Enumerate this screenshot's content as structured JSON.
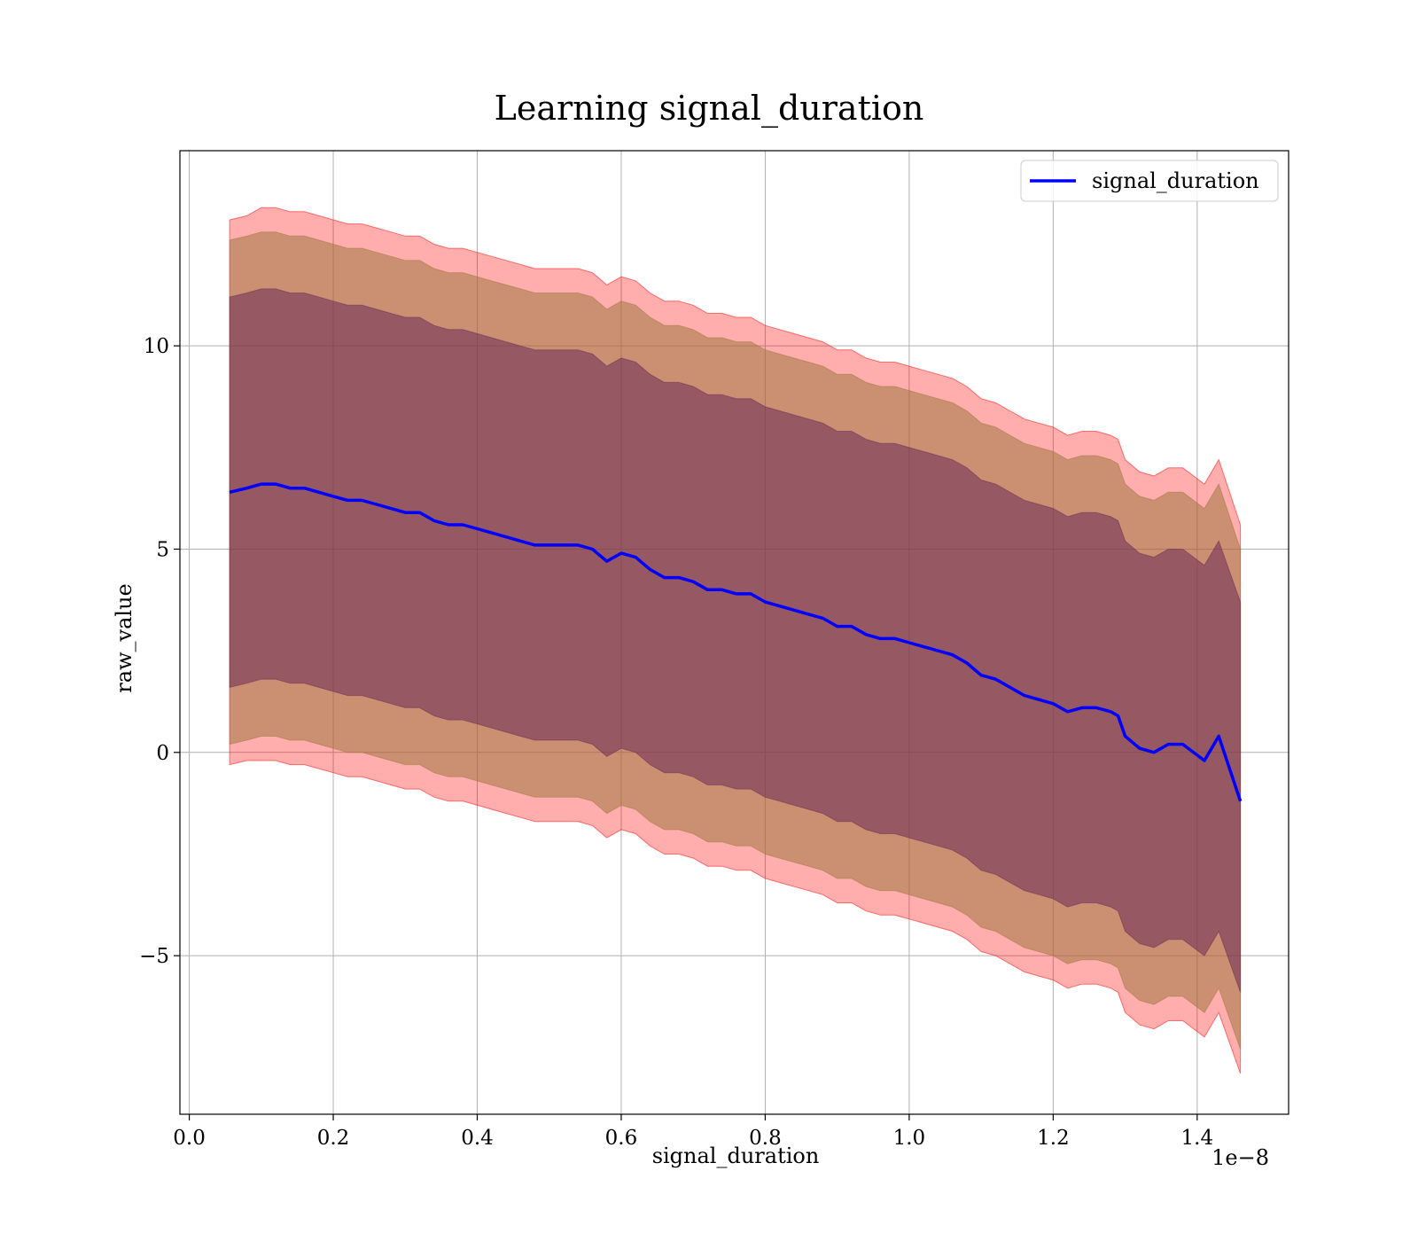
{
  "chart_data": {
    "type": "line",
    "title": "Learning signal_duration",
    "xlabel": "signal_duration",
    "ylabel": "raw_value",
    "x_offset_label": "1e−8",
    "xlim": [
      -0.013,
      1.527
    ],
    "ylim": [
      -8.9,
      14.8
    ],
    "x_ticks": [
      0.0,
      0.2,
      0.4,
      0.6,
      0.8,
      1.0,
      1.2,
      1.4
    ],
    "x_tick_labels": [
      "0.0",
      "0.2",
      "0.4",
      "0.6",
      "0.8",
      "1.0",
      "1.2",
      "1.4"
    ],
    "y_ticks": [
      -5,
      0,
      5,
      10
    ],
    "y_tick_labels": [
      "−5",
      "0",
      "5",
      "10"
    ],
    "grid": true,
    "legend": {
      "position": "top-right",
      "entries": [
        "signal_duration"
      ]
    },
    "colors": {
      "line": "#0000ff",
      "outer_band": "#ff0000",
      "middle_band": "#a07840",
      "inner_band": "#6b2a55",
      "grid": "#b0b0b0"
    },
    "series": [
      {
        "name": "signal_duration",
        "x": [
          0.056,
          0.08,
          0.1,
          0.12,
          0.14,
          0.16,
          0.18,
          0.2,
          0.22,
          0.24,
          0.26,
          0.28,
          0.3,
          0.32,
          0.34,
          0.36,
          0.38,
          0.4,
          0.42,
          0.44,
          0.46,
          0.48,
          0.5,
          0.52,
          0.54,
          0.56,
          0.58,
          0.6,
          0.62,
          0.64,
          0.66,
          0.68,
          0.7,
          0.72,
          0.74,
          0.76,
          0.78,
          0.8,
          0.82,
          0.84,
          0.86,
          0.88,
          0.9,
          0.92,
          0.94,
          0.96,
          0.98,
          1.0,
          1.02,
          1.04,
          1.06,
          1.08,
          1.1,
          1.12,
          1.14,
          1.16,
          1.18,
          1.2,
          1.22,
          1.24,
          1.26,
          1.28,
          1.29,
          1.3,
          1.32,
          1.34,
          1.36,
          1.38,
          1.41,
          1.43,
          1.46
        ],
        "y": [
          6.4,
          6.5,
          6.6,
          6.6,
          6.5,
          6.5,
          6.4,
          6.3,
          6.2,
          6.2,
          6.1,
          6.0,
          5.9,
          5.9,
          5.7,
          5.6,
          5.6,
          5.5,
          5.4,
          5.3,
          5.2,
          5.1,
          5.1,
          5.1,
          5.1,
          5.0,
          4.7,
          4.9,
          4.8,
          4.5,
          4.3,
          4.3,
          4.2,
          4.0,
          4.0,
          3.9,
          3.9,
          3.7,
          3.6,
          3.5,
          3.4,
          3.3,
          3.1,
          3.1,
          2.9,
          2.8,
          2.8,
          2.7,
          2.6,
          2.5,
          2.4,
          2.2,
          1.9,
          1.8,
          1.6,
          1.4,
          1.3,
          1.2,
          1.0,
          1.1,
          1.1,
          1.0,
          0.9,
          0.4,
          0.1,
          0.0,
          0.2,
          0.2,
          -0.2,
          0.4,
          -1.2
        ]
      }
    ],
    "bands": [
      {
        "role": "outer",
        "lower": [
          -0.3,
          -0.2,
          -0.2,
          -0.2,
          -0.3,
          -0.3,
          -0.4,
          -0.5,
          -0.6,
          -0.6,
          -0.7,
          -0.8,
          -0.9,
          -0.9,
          -1.1,
          -1.2,
          -1.2,
          -1.3,
          -1.4,
          -1.5,
          -1.6,
          -1.7,
          -1.7,
          -1.7,
          -1.7,
          -1.8,
          -2.1,
          -1.9,
          -2.0,
          -2.3,
          -2.5,
          -2.5,
          -2.6,
          -2.8,
          -2.8,
          -2.9,
          -2.9,
          -3.1,
          -3.2,
          -3.3,
          -3.4,
          -3.5,
          -3.7,
          -3.7,
          -3.9,
          -4.0,
          -4.0,
          -4.1,
          -4.2,
          -4.3,
          -4.4,
          -4.6,
          -4.9,
          -5.0,
          -5.2,
          -5.4,
          -5.5,
          -5.6,
          -5.8,
          -5.7,
          -5.7,
          -5.8,
          -5.9,
          -6.4,
          -6.7,
          -6.8,
          -6.6,
          -6.6,
          -7.0,
          -6.4,
          -7.9
        ],
        "upper": [
          13.1,
          13.2,
          13.4,
          13.4,
          13.3,
          13.3,
          13.2,
          13.1,
          13.0,
          13.0,
          12.9,
          12.8,
          12.7,
          12.7,
          12.5,
          12.4,
          12.4,
          12.3,
          12.2,
          12.1,
          12.0,
          11.9,
          11.9,
          11.9,
          11.9,
          11.8,
          11.5,
          11.7,
          11.6,
          11.3,
          11.1,
          11.1,
          11.0,
          10.8,
          10.8,
          10.7,
          10.7,
          10.5,
          10.4,
          10.3,
          10.2,
          10.1,
          9.9,
          9.9,
          9.7,
          9.6,
          9.6,
          9.5,
          9.4,
          9.3,
          9.2,
          9.0,
          8.7,
          8.6,
          8.4,
          8.2,
          8.1,
          8.0,
          7.8,
          7.9,
          7.9,
          7.8,
          7.7,
          7.2,
          6.9,
          6.8,
          7.0,
          7.0,
          6.6,
          7.2,
          5.6
        ]
      },
      {
        "role": "middle",
        "lower": [
          0.2,
          0.3,
          0.4,
          0.4,
          0.3,
          0.3,
          0.2,
          0.1,
          0.0,
          0.0,
          -0.1,
          -0.2,
          -0.3,
          -0.3,
          -0.5,
          -0.6,
          -0.6,
          -0.7,
          -0.8,
          -0.9,
          -1.0,
          -1.1,
          -1.1,
          -1.1,
          -1.1,
          -1.2,
          -1.5,
          -1.3,
          -1.4,
          -1.7,
          -1.9,
          -1.9,
          -2.0,
          -2.2,
          -2.2,
          -2.3,
          -2.3,
          -2.5,
          -2.6,
          -2.7,
          -2.8,
          -2.9,
          -3.1,
          -3.1,
          -3.3,
          -3.4,
          -3.4,
          -3.5,
          -3.6,
          -3.7,
          -3.8,
          -4.0,
          -4.3,
          -4.4,
          -4.6,
          -4.8,
          -4.9,
          -5.0,
          -5.2,
          -5.1,
          -5.1,
          -5.2,
          -5.3,
          -5.8,
          -6.1,
          -6.2,
          -6.0,
          -6.0,
          -6.4,
          -5.8,
          -7.3
        ],
        "upper": [
          12.6,
          12.7,
          12.8,
          12.8,
          12.7,
          12.7,
          12.6,
          12.5,
          12.4,
          12.4,
          12.3,
          12.2,
          12.1,
          12.1,
          11.9,
          11.8,
          11.8,
          11.7,
          11.6,
          11.5,
          11.4,
          11.3,
          11.3,
          11.3,
          11.3,
          11.2,
          10.9,
          11.1,
          11.0,
          10.7,
          10.5,
          10.5,
          10.4,
          10.2,
          10.2,
          10.1,
          10.1,
          9.9,
          9.8,
          9.7,
          9.6,
          9.5,
          9.3,
          9.3,
          9.1,
          9.0,
          9.0,
          8.9,
          8.8,
          8.7,
          8.6,
          8.4,
          8.1,
          8.0,
          7.8,
          7.6,
          7.5,
          7.4,
          7.2,
          7.3,
          7.3,
          7.2,
          7.1,
          6.6,
          6.3,
          6.2,
          6.4,
          6.4,
          6.0,
          6.6,
          5.0
        ]
      },
      {
        "role": "inner",
        "lower": [
          1.6,
          1.7,
          1.8,
          1.8,
          1.7,
          1.7,
          1.6,
          1.5,
          1.4,
          1.4,
          1.3,
          1.2,
          1.1,
          1.1,
          0.9,
          0.8,
          0.8,
          0.7,
          0.6,
          0.5,
          0.4,
          0.3,
          0.3,
          0.3,
          0.3,
          0.2,
          -0.1,
          0.1,
          0.0,
          -0.3,
          -0.5,
          -0.5,
          -0.6,
          -0.8,
          -0.8,
          -0.9,
          -0.9,
          -1.1,
          -1.2,
          -1.3,
          -1.4,
          -1.5,
          -1.7,
          -1.7,
          -1.9,
          -2.0,
          -2.0,
          -2.1,
          -2.2,
          -2.3,
          -2.4,
          -2.6,
          -2.9,
          -3.0,
          -3.2,
          -3.4,
          -3.5,
          -3.6,
          -3.8,
          -3.7,
          -3.7,
          -3.8,
          -3.9,
          -4.4,
          -4.7,
          -4.8,
          -4.6,
          -4.6,
          -5.0,
          -4.4,
          -5.9
        ],
        "upper": [
          11.2,
          11.3,
          11.4,
          11.4,
          11.3,
          11.3,
          11.2,
          11.1,
          11.0,
          11.0,
          10.9,
          10.8,
          10.7,
          10.7,
          10.5,
          10.4,
          10.4,
          10.3,
          10.2,
          10.1,
          10.0,
          9.9,
          9.9,
          9.9,
          9.9,
          9.8,
          9.5,
          9.7,
          9.6,
          9.3,
          9.1,
          9.1,
          9.0,
          8.8,
          8.8,
          8.7,
          8.7,
          8.5,
          8.4,
          8.3,
          8.2,
          8.1,
          7.9,
          7.9,
          7.7,
          7.6,
          7.6,
          7.5,
          7.4,
          7.3,
          7.2,
          7.0,
          6.7,
          6.6,
          6.4,
          6.2,
          6.1,
          6.0,
          5.8,
          5.9,
          5.9,
          5.8,
          5.7,
          5.2,
          4.9,
          4.8,
          5.0,
          5.0,
          4.6,
          5.2,
          3.7
        ]
      }
    ]
  }
}
